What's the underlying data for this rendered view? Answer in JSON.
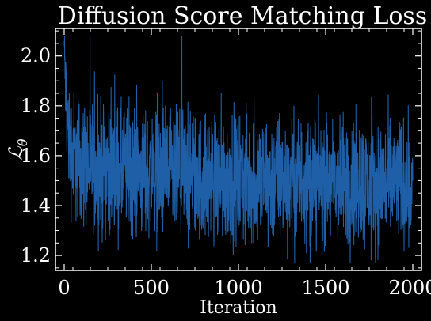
{
  "chart_data": {
    "type": "line",
    "title": "Diffusion Score Matching Loss",
    "xlabel": "Iteration",
    "ylabel": "ℒ",
    "ylabel_subscript": "θ",
    "xlim": [
      -50,
      2050
    ],
    "ylim": [
      1.14,
      2.11
    ],
    "xticks": [
      0,
      500,
      1000,
      1500,
      2000
    ],
    "xtick_labels": [
      "0",
      "500",
      "1000",
      "1500",
      "2000"
    ],
    "yticks": [
      1.2,
      1.4,
      1.6,
      1.8,
      2.0
    ],
    "ytick_labels": [
      "1.2",
      "1.4",
      "1.6",
      "1.8",
      "2.0"
    ],
    "grid": false,
    "legend": "none",
    "colors": {
      "background": "#000000",
      "axes": "#ffffff",
      "line": "#1f5fa8"
    },
    "series": [
      {
        "color": "#1f5fa8",
        "x": [
          0,
          4,
          8,
          12,
          16,
          20,
          25,
          30,
          35,
          40,
          50,
          60,
          70,
          80,
          90,
          100,
          120,
          140,
          160,
          180,
          200,
          250,
          300,
          350,
          400,
          450,
          500,
          550,
          600,
          650,
          700,
          750,
          800,
          850,
          900,
          950,
          1000,
          1050,
          1100,
          1150,
          1200,
          1250,
          1300,
          1350,
          1400,
          1450,
          1500,
          1550,
          1600,
          1650,
          1700,
          1750,
          1800,
          1850,
          1900,
          1950,
          2000
        ],
        "y": [
          2.06,
          1.95,
          1.88,
          1.82,
          1.76,
          1.72,
          1.68,
          1.65,
          1.63,
          1.62,
          1.61,
          1.6,
          1.59,
          1.58,
          1.58,
          1.57,
          1.57,
          1.56,
          1.56,
          1.56,
          1.55,
          1.55,
          1.54,
          1.54,
          1.53,
          1.53,
          1.53,
          1.52,
          1.52,
          1.52,
          1.52,
          1.51,
          1.51,
          1.51,
          1.51,
          1.51,
          1.51,
          1.5,
          1.5,
          1.5,
          1.5,
          1.5,
          1.5,
          1.5,
          1.5,
          1.5,
          1.49,
          1.49,
          1.49,
          1.49,
          1.49,
          1.49,
          1.49,
          1.49,
          1.49,
          1.49,
          1.49
        ],
        "spread": [
          0.05,
          0.1,
          0.12,
          0.14,
          0.16,
          0.17,
          0.18,
          0.19,
          0.2,
          0.2,
          0.2,
          0.2,
          0.2,
          0.2,
          0.2,
          0.2,
          0.2,
          0.2,
          0.2,
          0.2,
          0.2,
          0.2,
          0.2,
          0.2,
          0.2,
          0.2,
          0.2,
          0.2,
          0.2,
          0.2,
          0.2,
          0.2,
          0.2,
          0.2,
          0.2,
          0.2,
          0.2,
          0.2,
          0.2,
          0.2,
          0.2,
          0.2,
          0.2,
          0.2,
          0.2,
          0.2,
          0.2,
          0.2,
          0.2,
          0.2,
          0.2,
          0.2,
          0.2,
          0.2,
          0.2,
          0.2,
          0.2
        ]
      }
    ]
  }
}
